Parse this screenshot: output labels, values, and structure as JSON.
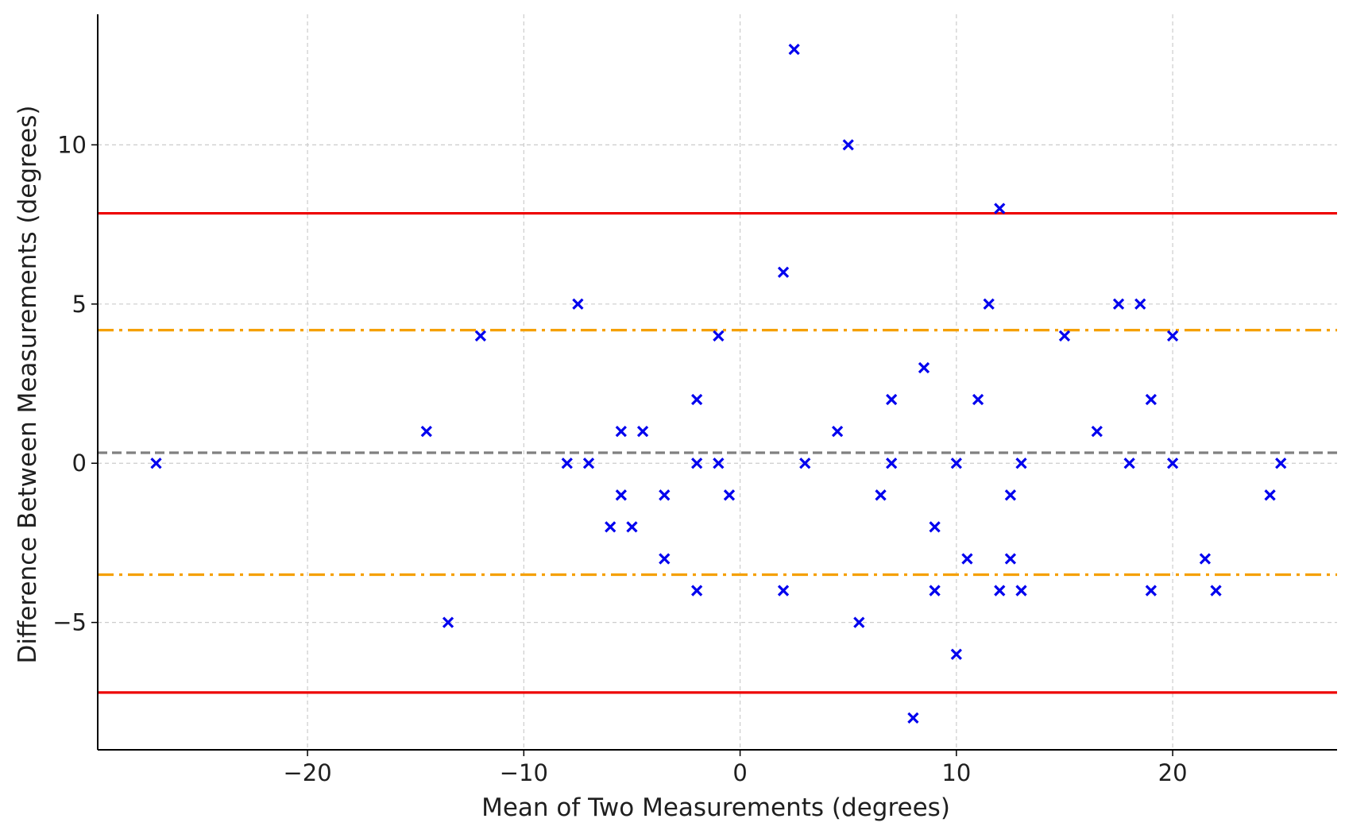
{
  "chart_data": {
    "type": "scatter",
    "title": "",
    "xlabel": "Mean of Two Measurements (degrees)",
    "ylabel": "Difference Between Measurements (degrees)",
    "xlim": [
      -29.7,
      27.6
    ],
    "ylim": [
      -9.0,
      14.1
    ],
    "x_ticks": [
      -20,
      -10,
      0,
      10,
      20
    ],
    "x_tick_labels": [
      "−20",
      "−10",
      "0",
      "10",
      "20"
    ],
    "y_ticks": [
      -5,
      0,
      5,
      10
    ],
    "y_tick_labels": [
      "−5",
      "0",
      "5",
      "10"
    ],
    "grid": true,
    "legend": "none",
    "marker": "x",
    "colors": {
      "points": "#0000ee",
      "mean_line": "#808080",
      "inner_limits": "#f5a000",
      "outer_limits": "#ee0000",
      "grid": "#cccccc",
      "axis": "#000000"
    },
    "points": [
      {
        "x": -27,
        "y": 0
      },
      {
        "x": -14.5,
        "y": 1
      },
      {
        "x": -13.5,
        "y": -5
      },
      {
        "x": -12,
        "y": 4
      },
      {
        "x": -8,
        "y": 0
      },
      {
        "x": -7.5,
        "y": 5
      },
      {
        "x": -7,
        "y": 0
      },
      {
        "x": -6,
        "y": -2
      },
      {
        "x": -5.5,
        "y": 1
      },
      {
        "x": -5.5,
        "y": -1
      },
      {
        "x": -5,
        "y": -2
      },
      {
        "x": -4.5,
        "y": 1
      },
      {
        "x": -3.5,
        "y": -1
      },
      {
        "x": -3.5,
        "y": -3
      },
      {
        "x": -2,
        "y": 2
      },
      {
        "x": -2,
        "y": 0
      },
      {
        "x": -2,
        "y": -4
      },
      {
        "x": -1,
        "y": 4
      },
      {
        "x": -1,
        "y": 0
      },
      {
        "x": -0.5,
        "y": -1
      },
      {
        "x": 2,
        "y": 6
      },
      {
        "x": 2,
        "y": -4
      },
      {
        "x": 2.5,
        "y": 13
      },
      {
        "x": 3,
        "y": 0
      },
      {
        "x": 4.5,
        "y": 1
      },
      {
        "x": 5,
        "y": 10
      },
      {
        "x": 5.5,
        "y": -5
      },
      {
        "x": 6.5,
        "y": -1
      },
      {
        "x": 7,
        "y": 2
      },
      {
        "x": 7,
        "y": 0
      },
      {
        "x": 8,
        "y": -8
      },
      {
        "x": 8.5,
        "y": 3
      },
      {
        "x": 9,
        "y": -2
      },
      {
        "x": 9,
        "y": -4
      },
      {
        "x": 10,
        "y": 0
      },
      {
        "x": 10,
        "y": -6
      },
      {
        "x": 10.5,
        "y": -3
      },
      {
        "x": 11,
        "y": 2
      },
      {
        "x": 11.5,
        "y": 5
      },
      {
        "x": 12,
        "y": 8
      },
      {
        "x": 12,
        "y": -4
      },
      {
        "x": 12.5,
        "y": -1
      },
      {
        "x": 12.5,
        "y": -3
      },
      {
        "x": 13,
        "y": 0
      },
      {
        "x": 13,
        "y": -4
      },
      {
        "x": 15,
        "y": 4
      },
      {
        "x": 16.5,
        "y": 1
      },
      {
        "x": 17.5,
        "y": 5
      },
      {
        "x": 18,
        "y": 0
      },
      {
        "x": 18.5,
        "y": 5
      },
      {
        "x": 19,
        "y": 2
      },
      {
        "x": 19,
        "y": -4
      },
      {
        "x": 20,
        "y": 4
      },
      {
        "x": 20,
        "y": 0
      },
      {
        "x": 21.5,
        "y": -3
      },
      {
        "x": 22,
        "y": -4
      },
      {
        "x": 24.5,
        "y": -1
      },
      {
        "x": 25,
        "y": 0
      }
    ],
    "reference_lines": [
      {
        "id": "mean-difference-line",
        "y": 0.33,
        "color": "#808080",
        "style": "dashed"
      },
      {
        "id": "upper-inner-limit-line",
        "y": 4.18,
        "color": "#f5a000",
        "style": "dashdot"
      },
      {
        "id": "lower-inner-limit-line",
        "y": -3.5,
        "color": "#f5a000",
        "style": "dashdot"
      },
      {
        "id": "upper-outer-limit-line",
        "y": 7.85,
        "color": "#ee0000",
        "style": "solid"
      },
      {
        "id": "lower-outer-limit-line",
        "y": -7.2,
        "color": "#ee0000",
        "style": "solid"
      }
    ]
  }
}
